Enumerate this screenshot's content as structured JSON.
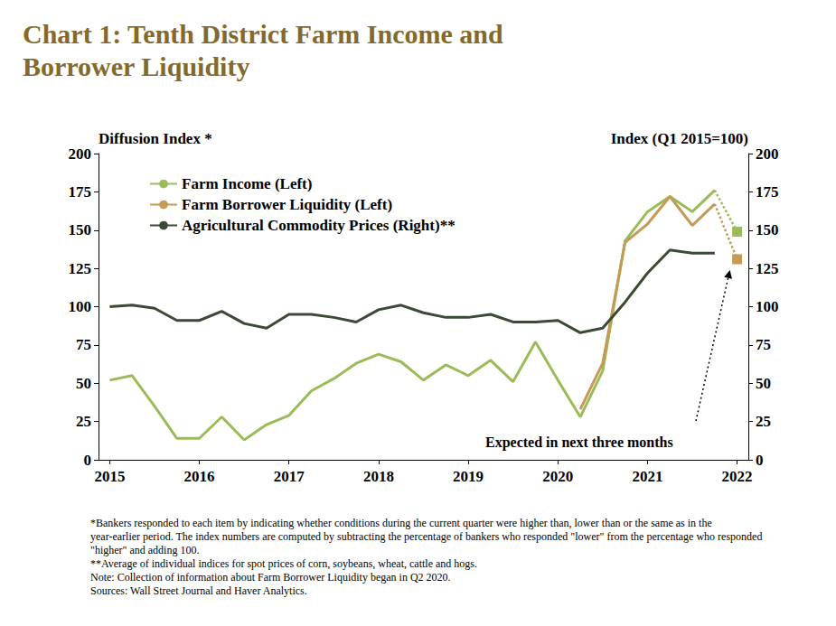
{
  "chart_data": {
    "type": "line",
    "title": "Chart 1: Tenth District Farm Income and Borrower Liquidity",
    "y_label": "Diffusion Index *",
    "y2_label": "Index (Q1 2015=100)",
    "categories": [
      "2015",
      null,
      null,
      null,
      "2016",
      null,
      null,
      null,
      "2017",
      null,
      null,
      null,
      "2018",
      null,
      null,
      null,
      "2019",
      null,
      null,
      null,
      "2020",
      null,
      null,
      null,
      "2021",
      null,
      null,
      null,
      "2022"
    ],
    "series": [
      {
        "name": "Farm Income (Left)",
        "color": "#9BBB59",
        "line_style": "solid",
        "values": [
          52,
          55,
          35,
          14,
          14,
          28,
          13,
          23,
          29,
          45,
          53,
          63,
          69,
          64,
          52,
          62,
          55,
          65,
          51,
          77,
          52,
          28,
          58,
          143,
          162,
          172,
          162,
          176,
          null
        ],
        "expected": 149
      },
      {
        "name": "Farm Borrower Liquidity (Left)",
        "color": "#C49A55",
        "line_style": "solid",
        "values": [
          null,
          null,
          null,
          null,
          null,
          null,
          null,
          null,
          null,
          null,
          null,
          null,
          null,
          null,
          null,
          null,
          null,
          null,
          null,
          null,
          null,
          33,
          63,
          142,
          154,
          172,
          153,
          167,
          null
        ],
        "expected": 131
      },
      {
        "name": "Agricultural Commodity Prices (Right)**",
        "color": "#3A4A33",
        "line_style": "solid",
        "axis": "y2",
        "values": [
          100,
          101,
          99,
          91,
          91,
          97,
          89,
          86,
          95,
          95,
          93,
          90,
          98,
          101,
          96,
          93,
          93,
          95,
          90,
          90,
          91,
          83,
          86,
          103,
          122,
          137,
          135,
          135,
          null
        ]
      }
    ],
    "ylim": [
      0,
      200
    ],
    "yticks": [
      0,
      25,
      50,
      75,
      100,
      125,
      150,
      175,
      200
    ],
    "y2lim": [
      0,
      200
    ],
    "y2ticks": [
      0,
      25,
      50,
      75,
      100,
      125,
      150,
      175,
      200
    ],
    "grid": false,
    "legend": "upper left",
    "annotation": "Expected in next three months",
    "notes": [
      "*Bankers responded to each item by indicating whether conditions during the current quarter were higher than, lower than or the same as in the year-earlier period. The index numbers are computed by subtracting the percentage of bankers who responded \"lower\" from the percentage who responded \"higher\" and adding 100.",
      "**Average of individual indices for spot prices of corn, soybeans, wheat, cattle and hogs.",
      "Note: Collection of information about Farm Borrower Liquidity began in Q2 2020.",
      "Sources: Wall Street Journal and Haver Analytics."
    ]
  }
}
